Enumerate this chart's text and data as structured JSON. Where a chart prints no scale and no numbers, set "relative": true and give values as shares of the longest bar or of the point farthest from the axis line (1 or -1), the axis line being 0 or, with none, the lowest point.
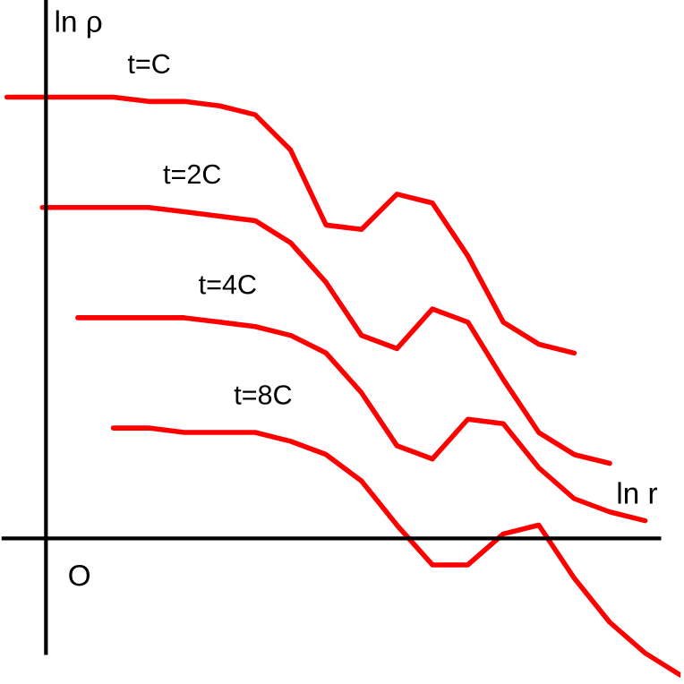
{
  "chart_data": {
    "type": "line",
    "relative": true,
    "xlabel": "ln r",
    "ylabel": "ln ρ",
    "categories": [
      null,
      null,
      null,
      null,
      null,
      null,
      null,
      null,
      null,
      null,
      null,
      null,
      null,
      null,
      null,
      null,
      null,
      null,
      null,
      null
    ],
    "series": [
      {
        "name": "t=C",
        "color": "#ff0000",
        "values": [
          1.0,
          1.0,
          1.0,
          1.0,
          0.99,
          0.99,
          0.98,
          0.96,
          0.88,
          0.71,
          0.7,
          0.78,
          0.76,
          0.64,
          0.49,
          0.44,
          0.42,
          null,
          null,
          null
        ]
      },
      {
        "name": "t=2C",
        "color": "#ff0000",
        "values": [
          null,
          0.75,
          0.75,
          0.75,
          0.75,
          0.74,
          0.73,
          0.72,
          0.67,
          0.58,
          0.46,
          0.43,
          0.52,
          0.49,
          0.36,
          0.24,
          0.19,
          0.17,
          null,
          null
        ]
      },
      {
        "name": "t=4C",
        "color": "#ff0000",
        "values": [
          null,
          null,
          0.5,
          0.5,
          0.5,
          0.5,
          0.49,
          0.48,
          0.46,
          0.42,
          0.33,
          0.21,
          0.18,
          0.27,
          0.26,
          0.16,
          0.09,
          0.06,
          0.04,
          null
        ]
      },
      {
        "name": "t=8C",
        "color": "#ff0000",
        "values": [
          null,
          null,
          null,
          0.25,
          0.25,
          0.24,
          0.24,
          0.24,
          0.22,
          0.19,
          0.13,
          0.03,
          -0.06,
          -0.06,
          0.01,
          0.03,
          -0.09,
          -0.19,
          -0.26,
          -0.31
        ]
      }
    ],
    "annotations": [
      "O"
    ]
  }
}
